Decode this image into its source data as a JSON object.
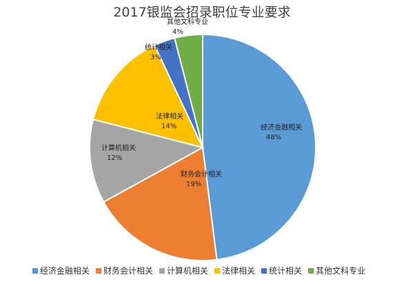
{
  "chart_data": {
    "type": "pie",
    "title": "2017银监会招录职位专业要求",
    "legend_position": "bottom",
    "start_angle_deg": 0,
    "direction": "clockwise",
    "slices": [
      {
        "label": "经济金融相关",
        "value": 48,
        "display": "48%",
        "color": "#5b9bd5"
      },
      {
        "label": "财务会计相关",
        "value": 19,
        "display": "19%",
        "color": "#ed7d31"
      },
      {
        "label": "计算机相关",
        "value": 12,
        "display": "12%",
        "color": "#a5a5a5"
      },
      {
        "label": "法律相关",
        "value": 14,
        "display": "14%",
        "color": "#ffc000"
      },
      {
        "label": "统计相关",
        "value": 3,
        "display": "3%",
        "color": "#4472c4"
      },
      {
        "label": "其他文科专业",
        "value": 4,
        "display": "4%",
        "color": "#70ad47"
      }
    ]
  }
}
